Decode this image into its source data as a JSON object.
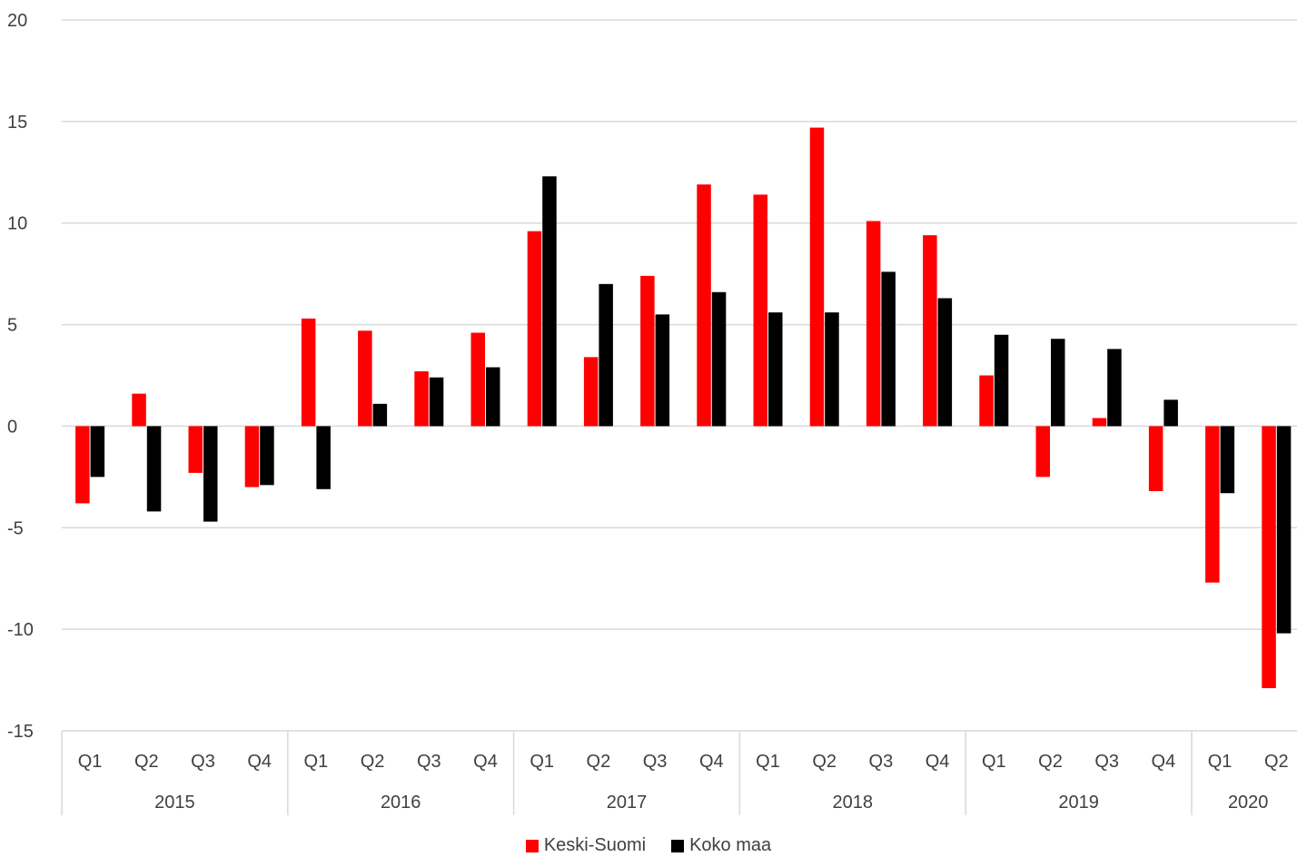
{
  "chart_data": {
    "type": "bar",
    "quarters": [
      "Q1",
      "Q2",
      "Q3",
      "Q4",
      "Q1",
      "Q2",
      "Q3",
      "Q4",
      "Q1",
      "Q2",
      "Q3",
      "Q4",
      "Q1",
      "Q2",
      "Q3",
      "Q4",
      "Q1",
      "Q2",
      "Q3",
      "Q4",
      "Q1",
      "Q2"
    ],
    "years": [
      {
        "label": "2015",
        "span": 4
      },
      {
        "label": "2016",
        "span": 4
      },
      {
        "label": "2017",
        "span": 4
      },
      {
        "label": "2018",
        "span": 4
      },
      {
        "label": "2019",
        "span": 4
      },
      {
        "label": "2020",
        "span": 2
      }
    ],
    "series": [
      {
        "name": "Keski-Suomi",
        "color": "#ff0000",
        "values": [
          -3.8,
          1.6,
          -2.3,
          -3.0,
          5.3,
          4.7,
          2.7,
          4.6,
          9.6,
          3.4,
          7.4,
          11.9,
          11.4,
          14.7,
          10.1,
          9.4,
          2.5,
          -2.5,
          0.4,
          -3.2,
          -7.7,
          -12.9
        ]
      },
      {
        "name": "Koko maa",
        "color": "#000000",
        "values": [
          -2.5,
          -4.2,
          -4.7,
          -2.9,
          -3.1,
          1.1,
          2.4,
          2.9,
          12.3,
          7.0,
          5.5,
          6.6,
          5.6,
          5.6,
          7.6,
          6.3,
          4.5,
          4.3,
          3.8,
          1.3,
          -3.3,
          -10.2
        ]
      }
    ],
    "ylim": [
      -15,
      20
    ],
    "yticks": [
      "-15",
      "-10",
      "-5",
      "0",
      "5",
      "10",
      "15",
      "20"
    ],
    "grid": true,
    "legend_position": "bottom"
  }
}
